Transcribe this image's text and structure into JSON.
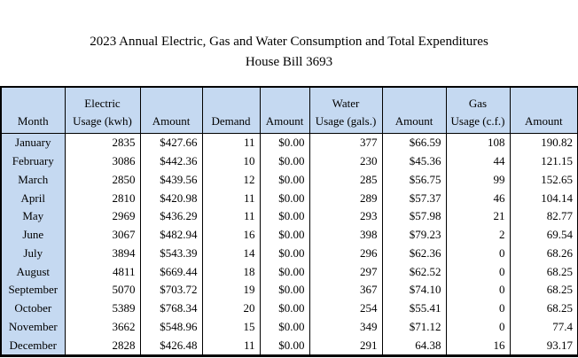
{
  "page": {
    "title_line1": "2023 Annual Electric, Gas and Water Consumption and Total Expenditures",
    "title_line2": "House Bill 3693"
  },
  "colors": {
    "header_fill": "#C5D9F1",
    "border": "#000000",
    "background": "#FFFFFF"
  },
  "chart_data": {
    "type": "table",
    "title": "2023 Annual Electric, Gas and Water Consumption and Total Expenditures",
    "subtitle": "House Bill 3693",
    "columns": [
      "Month",
      "Electric\nUsage (kwh)",
      "Amount",
      "Demand",
      "Amount",
      "Water\nUsage (gals.)",
      "Amount",
      "Gas\nUsage (c.f.)",
      "Amount"
    ],
    "rows": [
      [
        "January",
        "2835",
        "$427.66",
        "11",
        "$0.00",
        "377",
        "$66.59",
        "108",
        "190.82"
      ],
      [
        "February",
        "3086",
        "$442.36",
        "10",
        "$0.00",
        "230",
        "$45.36",
        "44",
        "121.15"
      ],
      [
        "March",
        "2850",
        "$439.56",
        "12",
        "$0.00",
        "285",
        "$56.75",
        "99",
        "152.65"
      ],
      [
        "April",
        "2810",
        "$420.98",
        "11",
        "$0.00",
        "289",
        "$57.37",
        "46",
        "104.14"
      ],
      [
        "May",
        "2969",
        "$436.29",
        "11",
        "$0.00",
        "293",
        "$57.98",
        "21",
        "82.77"
      ],
      [
        "June",
        "3067",
        "$482.94",
        "16",
        "$0.00",
        "398",
        "$79.23",
        "2",
        "69.54"
      ],
      [
        "July",
        "3894",
        "$543.39",
        "14",
        "$0.00",
        "296",
        "$62.36",
        "0",
        "68.26"
      ],
      [
        "August",
        "4811",
        "$669.44",
        "18",
        "$0.00",
        "297",
        "$62.52",
        "0",
        "68.25"
      ],
      [
        "September",
        "5070",
        "$703.72",
        "19",
        "$0.00",
        "367",
        "$74.10",
        "0",
        "68.25"
      ],
      [
        "October",
        "5389",
        "$768.34",
        "20",
        "$0.00",
        "254",
        "$55.41",
        "0",
        "68.25"
      ],
      [
        "November",
        "3662",
        "$548.96",
        "15",
        "$0.00",
        "349",
        "$71.12",
        "0",
        "77.4"
      ],
      [
        "December",
        "2828",
        "$426.48",
        "11",
        "$0.00",
        "291",
        "64.38",
        "16",
        "93.17"
      ]
    ]
  }
}
